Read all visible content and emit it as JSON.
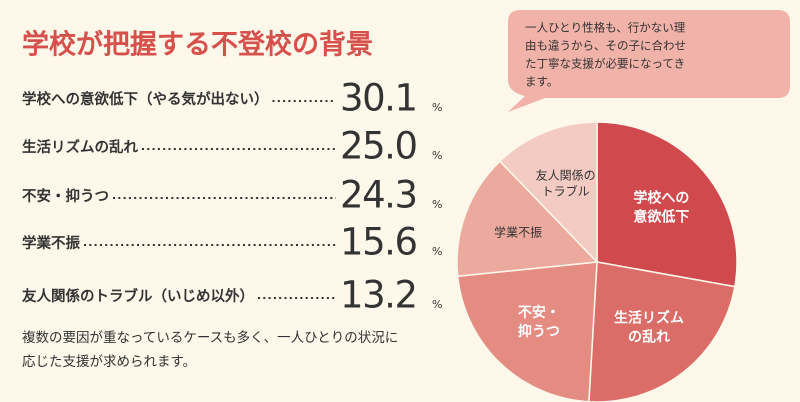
{
  "chart_data": {
    "type": "pie",
    "title": "学校が把握する不登校の背景",
    "categories": [
      "学校への意欲低下（やる気が出ない）",
      "生活リズムの乱れ",
      "不安・抑うつ",
      "学業不振",
      "友人関係のトラブル（いじめ以外）"
    ],
    "slice_labels": [
      [
        "学校への",
        "意欲低下"
      ],
      [
        "生活リズム",
        "の乱れ"
      ],
      [
        "不安・",
        "抑うつ"
      ],
      [
        "学業不振"
      ],
      [
        "友人関係の",
        "トラブル"
      ]
    ],
    "values": [
      30.1,
      25.0,
      24.3,
      15.6,
      13.2
    ],
    "value_labels": [
      "30.1",
      "25.0",
      "24.3",
      "15.6",
      "13.2"
    ],
    "unit": "%",
    "colors": [
      "#d04a4d",
      "#dc6c67",
      "#e48c82",
      "#ecaa9e",
      "#f3cbc2"
    ],
    "callout": [
      "一人ひとり性格も、行かない理",
      "由も違うから、その子に合わせ",
      "た丁寧な支援が必要になってき",
      "ます。"
    ],
    "caption": [
      "複数の要因が重なっているケースも多く、一人ひとりの状況に",
      "応じた支援が求められます。"
    ]
  }
}
